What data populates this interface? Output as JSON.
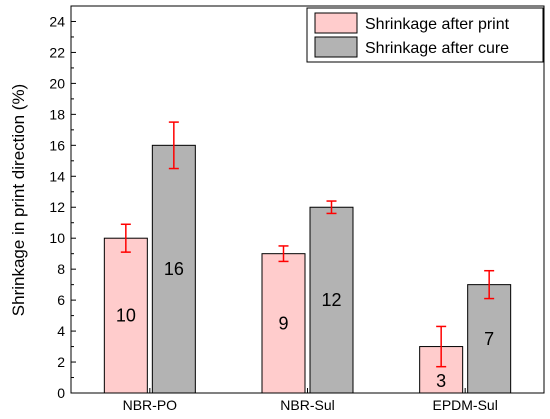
{
  "chart_data": {
    "type": "bar",
    "categories": [
      "NBR-PO",
      "NBR-Sul",
      "EPDM-Sul"
    ],
    "series": [
      {
        "name": "Shrinkage after print",
        "values": [
          10,
          9,
          3
        ],
        "errors": [
          0.9,
          0.5,
          1.3
        ],
        "labels": [
          "10",
          "9",
          "3"
        ],
        "color": "#ffcccc"
      },
      {
        "name": "Shrinkage after cure",
        "values": [
          16,
          12,
          7
        ],
        "errors": [
          1.5,
          0.4,
          0.9
        ],
        "labels": [
          "16",
          "12",
          "7"
        ],
        "color": "#b3b3b3"
      }
    ],
    "error_bar_color": "#ff0000",
    "title": "",
    "xlabel": "",
    "ylabel": "Shrinkage in print direction (%)",
    "ylim": [
      0,
      25
    ],
    "yticks": [
      0,
      2,
      4,
      6,
      8,
      10,
      12,
      14,
      16,
      18,
      20,
      22,
      24
    ],
    "grid": false,
    "legend_position": "top-right"
  }
}
